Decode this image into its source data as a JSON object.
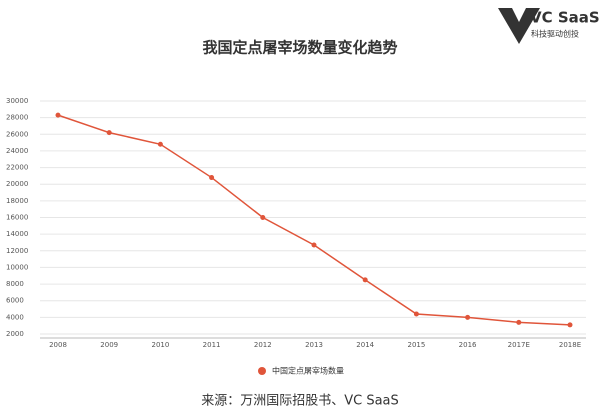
{
  "logo": {
    "name": "VC SaaS",
    "tagline": "科技驱动创投"
  },
  "chart_data": {
    "type": "line",
    "title": "我国定点屠宰场数量变化趋势",
    "categories": [
      "2008",
      "2009",
      "2010",
      "2011",
      "2012",
      "2013",
      "2014",
      "2015",
      "2016",
      "2017E",
      "2018E"
    ],
    "series": [
      {
        "name": "中国定点屠宰场数量",
        "color": "#e0553a",
        "values": [
          28300,
          26200,
          24800,
          20800,
          16000,
          12700,
          8500,
          4400,
          4000,
          3400,
          3100
        ]
      }
    ],
    "ylim": [
      2000,
      30000
    ],
    "yticks": [
      2000,
      4000,
      6000,
      8000,
      10000,
      12000,
      14000,
      16000,
      18000,
      20000,
      22000,
      24000,
      26000,
      28000,
      30000
    ],
    "grid": true,
    "legend": "bottom"
  },
  "source": "来源：万洲国际招股书、VC SaaS"
}
